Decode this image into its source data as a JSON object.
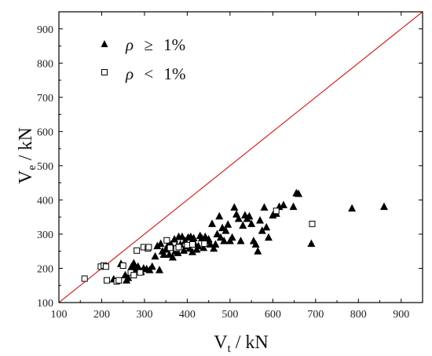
{
  "chart_data": {
    "type": "scatter",
    "title": "",
    "xlabel": {
      "main": "V",
      "sub": "t",
      "unit": " / kN"
    },
    "ylabel": {
      "main": "V",
      "sub": "e",
      "unit": " / kN"
    },
    "xlim": [
      100,
      950
    ],
    "ylim": [
      100,
      950
    ],
    "xticks": [
      100,
      200,
      300,
      400,
      500,
      600,
      700,
      800,
      900
    ],
    "yticks": [
      100,
      200,
      300,
      400,
      500,
      600,
      700,
      800,
      900
    ],
    "grid": false,
    "legend_position": "top-left",
    "reference_line": {
      "type": "y=x",
      "color": "#d62728"
    },
    "series": [
      {
        "name": "ρ ≥ 1%",
        "legend": {
          "symbol": "ρ",
          "operator": "≥",
          "value": "1%"
        },
        "marker": "triangle-filled",
        "color": "#000000",
        "points": [
          [
            228,
            168
          ],
          [
            245,
            213
          ],
          [
            255,
            180
          ],
          [
            258,
            165
          ],
          [
            262,
            172
          ],
          [
            270,
            205
          ],
          [
            275,
            215
          ],
          [
            278,
            198
          ],
          [
            285,
            205
          ],
          [
            292,
            190
          ],
          [
            298,
            200
          ],
          [
            305,
            198
          ],
          [
            312,
            195
          ],
          [
            318,
            205
          ],
          [
            325,
            235
          ],
          [
            330,
            265
          ],
          [
            335,
            195
          ],
          [
            338,
            272
          ],
          [
            342,
            250
          ],
          [
            345,
            240
          ],
          [
            350,
            255
          ],
          [
            355,
            268
          ],
          [
            358,
            240
          ],
          [
            362,
            270
          ],
          [
            366,
            232
          ],
          [
            370,
            285
          ],
          [
            372,
            250
          ],
          [
            376,
            265
          ],
          [
            378,
            245
          ],
          [
            380,
            292
          ],
          [
            384,
            270
          ],
          [
            388,
            292
          ],
          [
            392,
            252
          ],
          [
            395,
            280
          ],
          [
            398,
            265
          ],
          [
            402,
            290
          ],
          [
            405,
            258
          ],
          [
            408,
            292
          ],
          [
            412,
            248
          ],
          [
            415,
            288
          ],
          [
            418,
            270
          ],
          [
            422,
            255
          ],
          [
            426,
            265
          ],
          [
            430,
            295
          ],
          [
            434,
            288
          ],
          [
            438,
            260
          ],
          [
            442,
            292
          ],
          [
            446,
            280
          ],
          [
            450,
            285
          ],
          [
            454,
            270
          ],
          [
            458,
            330
          ],
          [
            462,
            258
          ],
          [
            466,
            270
          ],
          [
            470,
            300
          ],
          [
            475,
            352
          ],
          [
            478,
            290
          ],
          [
            482,
            318
          ],
          [
            486,
            280
          ],
          [
            490,
            310
          ],
          [
            495,
            328
          ],
          [
            500,
            280
          ],
          [
            505,
            290
          ],
          [
            510,
            378
          ],
          [
            515,
            358
          ],
          [
            520,
            345
          ],
          [
            525,
            280
          ],
          [
            530,
            325
          ],
          [
            535,
            355
          ],
          [
            540,
            345
          ],
          [
            545,
            352
          ],
          [
            550,
            330
          ],
          [
            555,
            280
          ],
          [
            560,
            270
          ],
          [
            565,
            250
          ],
          [
            570,
            340
          ],
          [
            575,
            310
          ],
          [
            580,
            378
          ],
          [
            585,
            320
          ],
          [
            590,
            290
          ],
          [
            600,
            355
          ],
          [
            608,
            360
          ],
          [
            615,
            380
          ],
          [
            625,
            385
          ],
          [
            648,
            380
          ],
          [
            655,
            420
          ],
          [
            660,
            418
          ],
          [
            690,
            272
          ],
          [
            785,
            375
          ],
          [
            860,
            380
          ]
        ]
      },
      {
        "name": "ρ < 1%",
        "legend": {
          "symbol": "ρ",
          "operator": "<",
          "value": "1%"
        },
        "marker": "square-open",
        "color": "#000000",
        "points": [
          [
            160,
            170
          ],
          [
            198,
            205
          ],
          [
            205,
            208
          ],
          [
            210,
            205
          ],
          [
            212,
            165
          ],
          [
            235,
            162
          ],
          [
            240,
            165
          ],
          [
            250,
            208
          ],
          [
            268,
            188
          ],
          [
            275,
            180
          ],
          [
            282,
            252
          ],
          [
            290,
            188
          ],
          [
            298,
            262
          ],
          [
            308,
            258
          ],
          [
            310,
            262
          ],
          [
            352,
            282
          ],
          [
            360,
            260
          ],
          [
            375,
            258
          ],
          [
            380,
            262
          ],
          [
            400,
            268
          ],
          [
            412,
            270
          ],
          [
            440,
            272
          ],
          [
            608,
            368
          ],
          [
            692,
            330
          ]
        ]
      }
    ]
  }
}
